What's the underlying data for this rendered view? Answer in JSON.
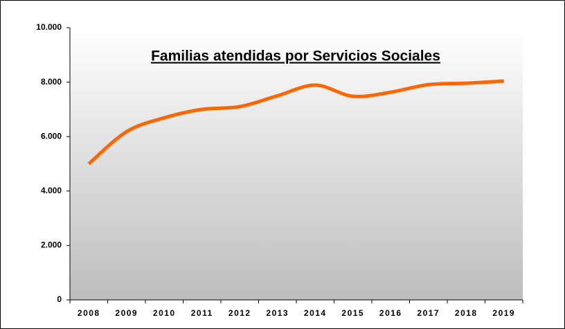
{
  "chart_data": {
    "type": "line",
    "title": "Familias atendidas por Servicios Sociales",
    "categories": [
      "2008",
      "2009",
      "2010",
      "2011",
      "2012",
      "2013",
      "2014",
      "2015",
      "2016",
      "2017",
      "2018",
      "2019"
    ],
    "series": [
      {
        "name": "Familias atendidas",
        "color": "#ff6600",
        "values": [
          5000,
          6180,
          6690,
          7000,
          7100,
          7500,
          7890,
          7480,
          7630,
          7910,
          7960,
          8040
        ]
      }
    ],
    "ylim": [
      0,
      10000
    ],
    "yticks": [
      0,
      {
        "value": 2000,
        "label": "2.000"
      },
      {
        "value": 4000,
        "label": "4.000"
      },
      {
        "value": 6000,
        "label": "6.000"
      },
      {
        "value": 8000,
        "label": "8.000"
      },
      {
        "value": 10000,
        "label": "10.000"
      }
    ],
    "grid": false,
    "legend": false
  }
}
